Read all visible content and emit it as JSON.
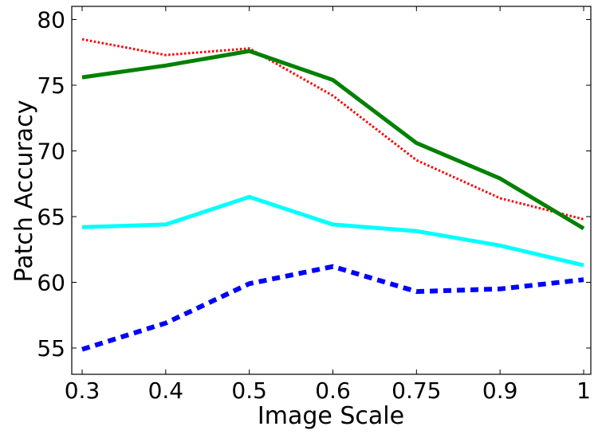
{
  "chart_data": {
    "type": "line",
    "xlabel": "Image Scale",
    "ylabel": "Patch Accuracy",
    "categories": [
      "0.3",
      "0.4",
      "0.5",
      "0.6",
      "0.75",
      "0.9",
      "1"
    ],
    "ylim": [
      53,
      81
    ],
    "yticks": [
      55,
      60,
      65,
      70,
      75,
      80
    ],
    "grid": false,
    "series": [
      {
        "color": "#ff0000",
        "style": "dotted",
        "values": [
          78.5,
          77.3,
          77.8,
          74.2,
          69.3,
          66.4,
          64.8
        ]
      },
      {
        "color": "#008000",
        "style": "solid",
        "values": [
          75.6,
          76.5,
          77.6,
          75.4,
          70.6,
          67.9,
          64.1
        ]
      },
      {
        "color": "#00ffff",
        "style": "solid",
        "values": [
          64.2,
          64.4,
          66.5,
          64.4,
          63.9,
          62.8,
          61.3
        ]
      },
      {
        "color": "#0000ff",
        "style": "dashed",
        "values": [
          54.9,
          56.9,
          59.9,
          61.2,
          59.3,
          59.5,
          60.2
        ]
      }
    ]
  }
}
